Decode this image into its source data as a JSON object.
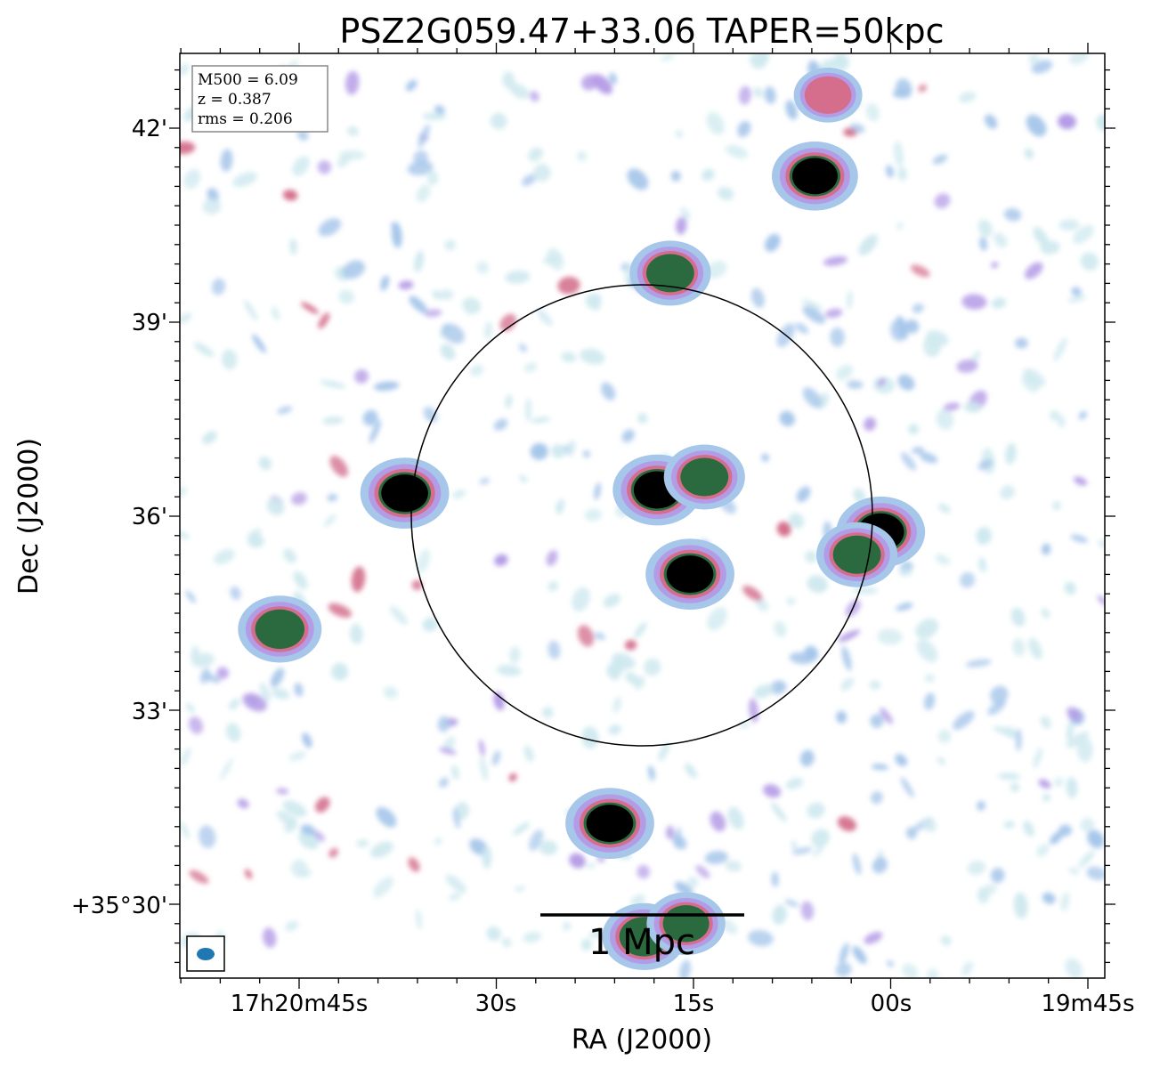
{
  "chart_data": {
    "type": "heatmap",
    "title": "PSZ2G059.47+33.06 TAPER=50kpc",
    "xlabel": "RA (J2000)",
    "ylabel": "Dec (J2000)",
    "x_ticks": [
      "17h20m45s",
      "30s",
      "15s",
      "00s",
      "19m45s"
    ],
    "y_ticks": [
      "+35°30'",
      "33'",
      "36'",
      "39'",
      "42'"
    ],
    "info_box": [
      "M500 = 6.09",
      "z = 0.387",
      "rms = 0.206"
    ],
    "scalebar_label": "1 Mpc",
    "circle": true,
    "colormap": [
      "#ffffff",
      "#cfe9ef",
      "#a6c6ea",
      "#b49be6",
      "#d46e8c",
      "#2a6a3e",
      "#000000"
    ],
    "sources": [
      {
        "name": "central-north",
        "ra_sec": 17.8,
        "dec_min": 36.4,
        "peak": 1.0
      },
      {
        "name": "central-ne-lobe",
        "ra_sec": 14.2,
        "dec_min": 36.6,
        "peak": 0.85
      },
      {
        "name": "central-south",
        "ra_sec": 15.3,
        "dec_min": 35.1,
        "peak": 1.0
      },
      {
        "name": "east-source",
        "ra_sec": 37.0,
        "dec_min": 36.35,
        "peak": 1.0
      },
      {
        "name": "west-source",
        "ra_sec": 0.8,
        "dec_min": 35.75,
        "peak": 1.0
      },
      {
        "name": "west-knot",
        "ra_sec": 2.6,
        "dec_min": 35.4,
        "peak": 0.85
      },
      {
        "name": "far-east-source",
        "ra_sec": 46.5,
        "dec_min": 34.25,
        "peak": 0.9
      },
      {
        "name": "south-source",
        "ra_sec": 21.4,
        "dec_min": 31.25,
        "peak": 1.0
      },
      {
        "name": "bottom-source",
        "ra_sec": 18.8,
        "dec_min": 29.5,
        "peak": 0.9
      },
      {
        "name": "bottom-source-2",
        "ra_sec": 15.6,
        "dec_min": 29.7,
        "peak": 0.8
      },
      {
        "name": "north-source",
        "ra_sec": 16.8,
        "dec_min": 39.75,
        "peak": 0.85
      },
      {
        "name": "ne-source",
        "ra_sec": 5.8,
        "dec_min": 41.25,
        "peak": 0.95
      },
      {
        "name": "far-north-source",
        "ra_sec": 4.8,
        "dec_min": 42.5,
        "peak": 0.6
      }
    ]
  }
}
